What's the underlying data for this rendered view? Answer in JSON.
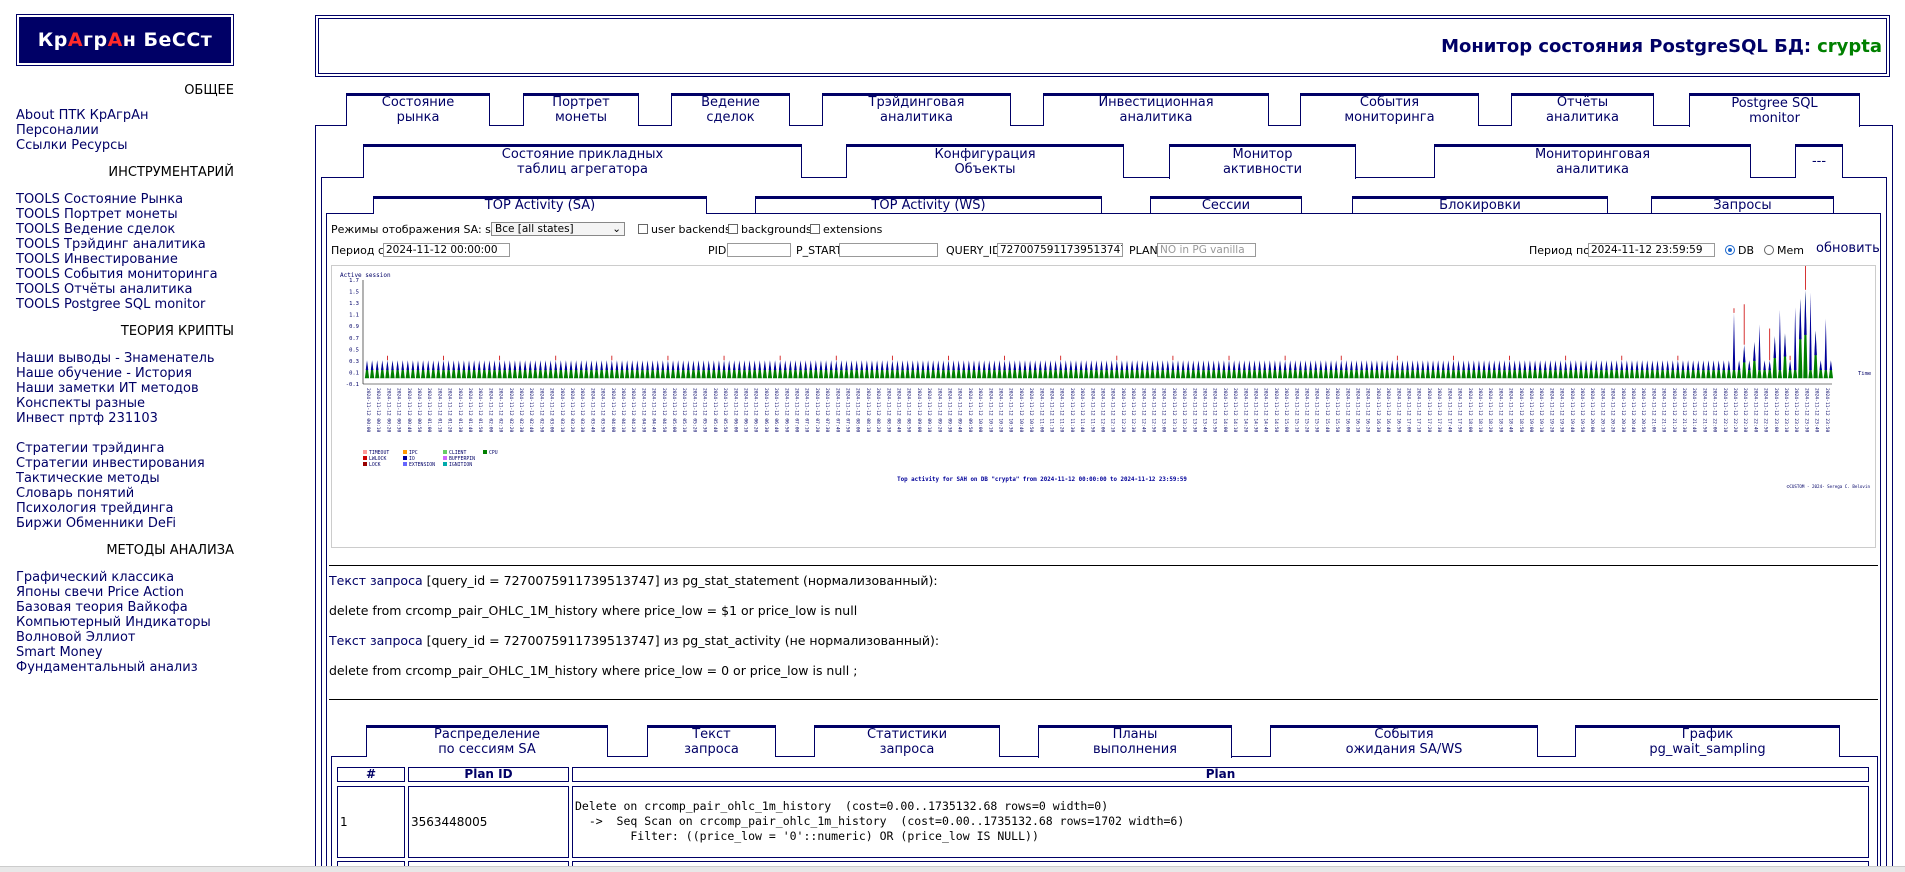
{
  "logo": {
    "parts": [
      "Кр",
      "А",
      "гр",
      "А",
      "н БеССт"
    ]
  },
  "sidebar": {
    "sections": [
      {
        "title": "ОБЩЕЕ",
        "links": [
          "About ПТК КрАгрАн",
          "Персоналии",
          "Ссылки Ресурсы"
        ]
      },
      {
        "title": "ИНСТРУМЕНТАРИЙ",
        "links": [
          "TOOLS Состояние Рынка",
          "TOOLS Портрет монеты",
          "TOOLS Ведение сделок",
          "TOOLS Трэйдинг аналитика",
          "TOOLS Инвестирование",
          "TOOLS События мониторинга",
          "TOOLS Отчёты аналитика",
          "TOOLS Postgree SQL monitor"
        ]
      },
      {
        "title": "ТЕОРИЯ КРИПТЫ",
        "links": [
          "Наши выводы - Знаменатель",
          "Наше обучение - История",
          "Наши заметки ИТ методов",
          "Конспекты разные",
          "Инвест пртф 231103"
        ]
      },
      {
        "title": "",
        "links": [
          "Стратегии трэйдинга",
          "Стратегии инвестирования",
          "Тактические методы",
          "Словарь понятий",
          "Психология трейдинга",
          "Биржи Обменники DeFi"
        ]
      },
      {
        "title": "МЕТОДЫ АНАЛИЗА",
        "links": [
          "Графический классика",
          "Японы свечи Price Action",
          "Базовая теория Вайкофа",
          "Компьютерный Индикаторы",
          "Волновой Эллиот",
          "Smart Money",
          "Фундаментальный анализ"
        ]
      }
    ]
  },
  "banner": {
    "title": "Монитор состояния PostgreSQL БД:",
    "db": "crypta"
  },
  "tabs_main": [
    [
      "Состояние",
      "рынка"
    ],
    [
      "Портрет",
      "монеты"
    ],
    [
      "Ведение",
      "сделок"
    ],
    [
      "Трэйдинговая",
      "аналитика"
    ],
    [
      "Инвестиционная",
      "аналитика"
    ],
    [
      "События",
      "мониторинга"
    ],
    [
      "Отчёты",
      "аналитика"
    ],
    [
      "Postgree SQL",
      "monitor"
    ]
  ],
  "tabs_sub": [
    [
      "Состояние прикладных",
      "таблиц агрегатора"
    ],
    [
      "Конфигурация",
      "Объекты"
    ],
    [
      "Монитор",
      "активности"
    ],
    [
      "Мониторинговая",
      "аналитика"
    ],
    [
      "---",
      ""
    ]
  ],
  "tabs_third": [
    "TOP Activity (SA)",
    "TOP Activity (WS)",
    "Сессии",
    "Блокировки",
    "Запросы"
  ],
  "filters": {
    "mode_label": "Режимы отображения SA: state",
    "state_value": "Все [all states]",
    "user_backends": "user backends",
    "backgrounds": "backgrounds",
    "extensions": "extensions",
    "period_from_label": "Период с",
    "period_from": "2024-11-12 00:00:00",
    "pid_label": "PID",
    "pstart_label": "P_START",
    "query_id_label": "QUERY_ID",
    "query_id": "7270075911739513747",
    "plan_label": "PLAN",
    "plan_placeholder": "NO in PG vanilla",
    "period_to_label": "Период по",
    "period_to": "2024-11-12 23:59:59",
    "db_label": "DB",
    "mem_label": "Mem",
    "refresh": "обновить"
  },
  "chart_data": {
    "type": "area",
    "title": "Top activity for SAH on DB \"crypta\" from 2024-11-12 00:00:00 to 2024-11-12 23:59:59",
    "ylabel": "Active session",
    "xlabel": "Time",
    "ylim": [
      -0.1,
      1.7
    ],
    "yticks": [
      "-0.1",
      "0.1",
      "0.3",
      "0.5",
      "0.7",
      "0.9",
      "1.1",
      "1.3",
      "1.5",
      "1.7"
    ],
    "x_start": "2024-11-12 00:00",
    "x_step_minutes": 5,
    "x_count": 288,
    "legend": [
      "TIMEOUT",
      "IPC",
      "CLIENT",
      "CPU",
      "LWLOCK",
      "IO",
      "BUFFERPIN",
      "LOCK",
      "EXTENSION",
      "IGNITION"
    ],
    "series": [
      {
        "name": "CPU",
        "color": "#008000",
        "baseline": 0.28,
        "spikes": [
          [
            270,
            0.55
          ],
          [
            272,
            0.6
          ],
          [
            276,
            0.7
          ],
          [
            278,
            0.75
          ],
          [
            281,
            1.35
          ],
          [
            282,
            1.5
          ],
          [
            284,
            0.8
          ]
        ]
      },
      {
        "name": "IO",
        "color": "#000099",
        "baseline": 0.03,
        "spikes": [
          [
            268,
            0.85
          ],
          [
            273,
            0.65
          ],
          [
            277,
            0.9
          ],
          [
            280,
            0.95
          ],
          [
            283,
            1.2
          ],
          [
            286,
            0.75
          ]
        ]
      },
      {
        "name": "LWLOCK",
        "color": "#cc0000",
        "baseline": 0.0,
        "spikes": [
          [
            270,
            0.7
          ],
          [
            275,
            0.55
          ],
          [
            282,
            1.6
          ]
        ]
      }
    ],
    "footer": "©CUSTOM - 2024- Serega C. Belovin"
  },
  "query": {
    "label1": "Текст запроса",
    "meta1": " [query_id = 7270075911739513747] из pg_stat_statement (нормализованный):",
    "text1": "delete from crcomp_pair_OHLC_1M_history where price_low = $1 or price_low is null",
    "label2": "Текст запроса",
    "meta2": " [query_id = 7270075911739513747] из pg_stat_activity (не нормализованный):",
    "text2": "delete from crcomp_pair_OHLC_1M_history where price_low = 0 or price_low is null ;"
  },
  "tabs_bottom": [
    [
      "Распределение",
      "по сессиям SA"
    ],
    [
      "Текст",
      "запроса"
    ],
    [
      "Статистики",
      "запроса"
    ],
    [
      "Планы",
      "выполнения"
    ],
    [
      "События",
      "ожидания SA/WS"
    ],
    [
      "График",
      "pg_wait_sampling"
    ]
  ],
  "plan_table": {
    "headers": [
      "#",
      "Plan ID",
      "Plan"
    ],
    "rows": [
      {
        "num": "1",
        "plan_id": "3563448005",
        "plan": "Delete on crcomp_pair_ohlc_1m_history  (cost=0.00..1735132.68 rows=0 width=0)\n  ->  Seq Scan on crcomp_pair_ohlc_1m_history  (cost=0.00..1735132.68 rows=1702 width=6)\n        Filter: ((price_low = '0'::numeric) OR (price_low IS NULL))"
      }
    ]
  }
}
